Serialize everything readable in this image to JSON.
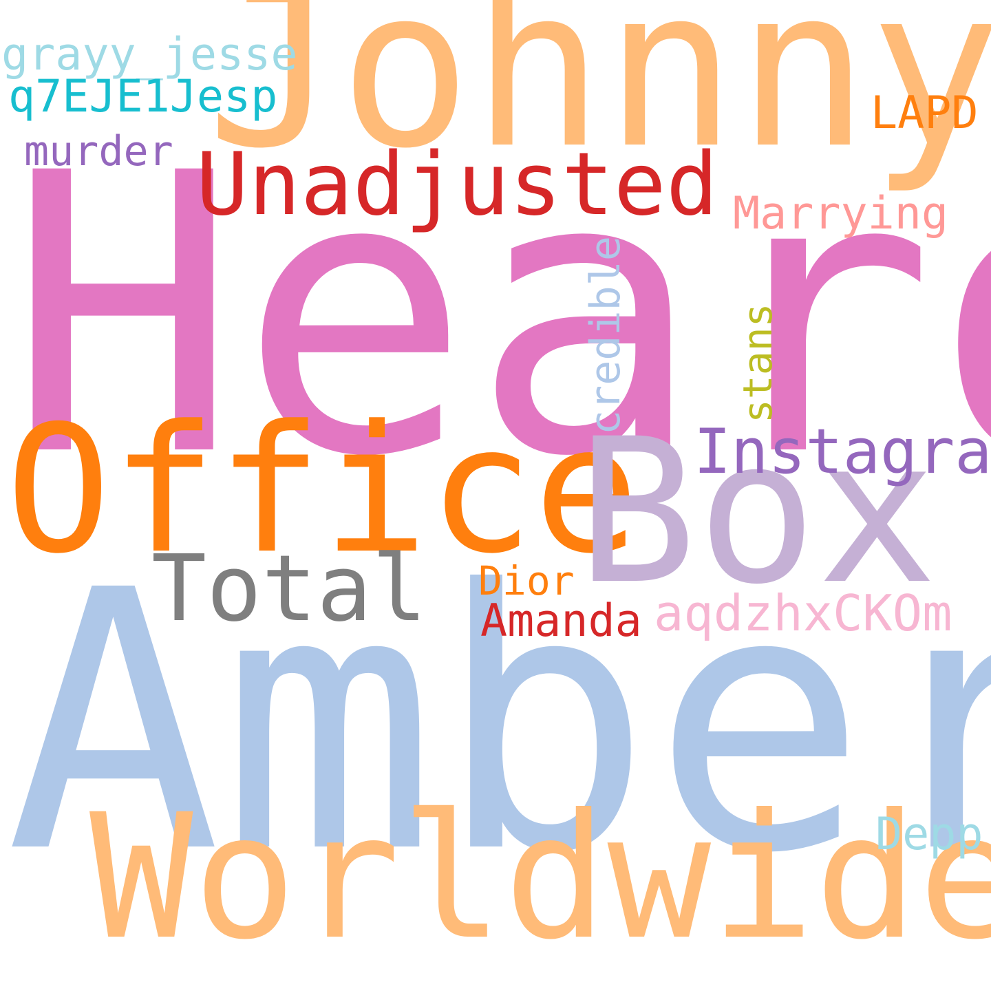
{
  "words": {
    "heard": {
      "text": "Heard",
      "color": "#e377c2"
    },
    "amber": {
      "text": "Amber",
      "color": "#aec7e8"
    },
    "johnny": {
      "text": "Johnny",
      "color": "#ffbb78"
    },
    "worldwide": {
      "text": "Worldwide",
      "color": "#ffbb78"
    },
    "office": {
      "text": "Office",
      "color": "#ff7f0e"
    },
    "box": {
      "text": "Box",
      "color": "#c5b0d5"
    },
    "unadjusted": {
      "text": "Unadjusted",
      "color": "#d62728"
    },
    "total": {
      "text": "Total",
      "color": "#7f7f7f"
    },
    "instagram": {
      "text": "Instagram",
      "color": "#9467bd"
    },
    "aqdz": {
      "text": "aqdzhxCKOm",
      "color": "#f7b6d2"
    },
    "amanda": {
      "text": "Amanda",
      "color": "#d62728"
    },
    "dior": {
      "text": "Dior",
      "color": "#ff7f0e"
    },
    "marrying": {
      "text": "Marrying",
      "color": "#ff9896"
    },
    "grayy": {
      "text": "grayy_jesse",
      "color": "#9edae5"
    },
    "q7": {
      "text": "q7EJE1Jesp",
      "color": "#17becf"
    },
    "murder": {
      "text": "murder",
      "color": "#9467bd"
    },
    "lapd": {
      "text": "LAPD",
      "color": "#ff7f0e"
    },
    "depp": {
      "text": "Depp",
      "color": "#9edae5"
    },
    "credible": {
      "text": "credible",
      "color": "#aec7e8"
    },
    "stans": {
      "text": "stans",
      "color": "#bcbd22"
    }
  }
}
